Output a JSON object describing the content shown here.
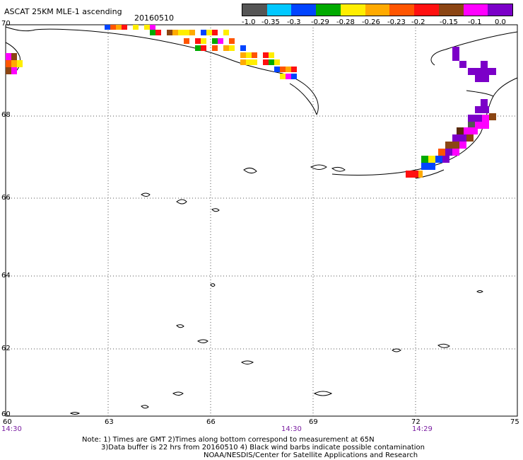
{
  "header": {
    "title": "ASCAT 25KM MLE-1 ascending",
    "date": "20160510"
  },
  "color_scale": {
    "labels": [
      "-1.0",
      "-0.35",
      "-0.3",
      "-0.29",
      "-0.28",
      "-0.26",
      "-0.23",
      "-0.2",
      "-0.15",
      "-0.1",
      "0.0"
    ],
    "colors": [
      "#555555",
      "#00c8ff",
      "#0044ff",
      "#00aa00",
      "#ffee00",
      "#ffaa00",
      "#ff5500",
      "#ff1010",
      "#8b4513",
      "#ff00ff",
      "#7b00c8"
    ]
  },
  "axes": {
    "lat_labels": [
      "70",
      "68",
      "66",
      "64",
      "62",
      "60"
    ],
    "lon_labels": [
      "60",
      "63",
      "66",
      "69",
      "72",
      "75"
    ],
    "time_labels": [
      "14:30",
      "14:30",
      "14:29"
    ]
  },
  "notes": {
    "line1": "Note: 1) Times are GMT 2)Times along bottom correspond to measurement at 65N",
    "line2": "3)Data buffer is 22 hrs from 20160510 4) Black wind barbs indicate possible contamination",
    "line3": "NOAA/NESDIS/Center for Satellite Applications and Research"
  }
}
